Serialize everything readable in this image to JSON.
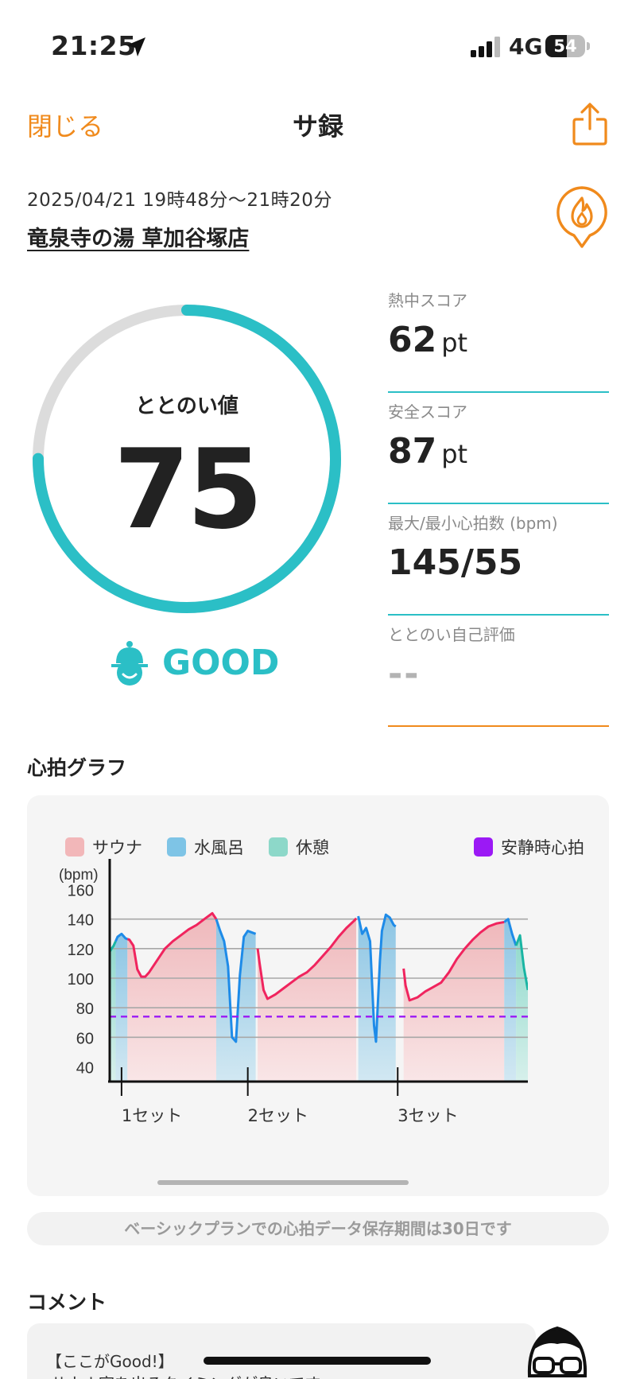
{
  "status_bar": {
    "time": "21:25",
    "network": "4G",
    "battery_level": "54",
    "battery_fraction": 0.54
  },
  "nav": {
    "close_label": "閉じる",
    "title": "サ録"
  },
  "session": {
    "datetime": "2025/04/21 19時48分～21時20分",
    "place": "竜泉寺の湯 草加谷塚店"
  },
  "score": {
    "label": "ととのい値",
    "value": "75",
    "fraction": 0.75,
    "rating": "GOOD"
  },
  "metrics": [
    {
      "label": "熱中スコア",
      "value": "62",
      "unit": "pt"
    },
    {
      "label": "安全スコア",
      "value": "87",
      "unit": "pt"
    },
    {
      "label": "最大/最小心拍数 (bpm)",
      "value": "145/55",
      "unit": ""
    },
    {
      "label": "ととのい自己評価",
      "value": "--",
      "unit": ""
    }
  ],
  "graph_section": {
    "title": "心拍グラフ"
  },
  "legend": {
    "sauna": "サウナ",
    "water": "水風呂",
    "rest": "休憩",
    "resting_hr": "安静時心拍"
  },
  "chart_data": {
    "type": "area",
    "ylabel": "(bpm)",
    "ylim": [
      30,
      170
    ],
    "yticks": [
      40,
      60,
      80,
      100,
      120,
      140,
      160
    ],
    "resting_hr": 74,
    "grid": true,
    "legend_position": "top",
    "set_labels": [
      {
        "label": "1セット",
        "t": 3
      },
      {
        "label": "2セット",
        "t": 35
      },
      {
        "label": "3セット",
        "t": 73
      }
    ],
    "phases": [
      {
        "type": "rest",
        "start": 0,
        "end": 1.5
      },
      {
        "type": "water",
        "start": 1.5,
        "end": 4.5
      },
      {
        "type": "sauna",
        "start": 4.5,
        "end": 27
      },
      {
        "type": "water",
        "start": 27,
        "end": 37
      },
      {
        "type": "sauna",
        "start": 37.5,
        "end": 62.5
      },
      {
        "type": "water",
        "start": 63,
        "end": 72.5
      },
      {
        "type": "sauna",
        "start": 74.5,
        "end": 100
      },
      {
        "type": "water",
        "start": 100,
        "end": 103
      },
      {
        "type": "rest",
        "start": 103,
        "end": 106
      }
    ],
    "series": [
      {
        "points": [
          [
            0,
            118
          ],
          [
            1,
            122
          ],
          [
            2,
            128
          ],
          [
            3,
            130
          ],
          [
            4,
            127
          ],
          [
            5,
            126
          ],
          [
            6,
            122
          ],
          [
            7,
            106
          ],
          [
            8,
            101
          ],
          [
            9,
            101
          ],
          [
            10,
            104
          ],
          [
            12,
            112
          ],
          [
            14,
            120
          ],
          [
            16,
            125
          ],
          [
            18,
            129
          ],
          [
            20,
            133
          ],
          [
            22,
            136
          ],
          [
            24,
            140
          ],
          [
            26,
            144
          ],
          [
            27,
            140
          ],
          [
            28,
            132
          ],
          [
            29,
            125
          ],
          [
            30,
            108
          ],
          [
            31,
            60
          ],
          [
            32,
            57
          ],
          [
            33,
            102
          ],
          [
            34,
            128
          ],
          [
            35,
            132
          ],
          [
            36,
            131
          ],
          [
            37,
            130
          ],
          [
            38,
            110
          ],
          [
            39,
            92
          ],
          [
            40,
            86
          ],
          [
            42,
            89
          ],
          [
            44,
            93
          ],
          [
            46,
            97
          ],
          [
            48,
            101
          ],
          [
            50,
            104
          ],
          [
            52,
            109
          ],
          [
            54,
            115
          ],
          [
            56,
            121
          ],
          [
            58,
            128
          ],
          [
            60,
            134
          ],
          [
            62,
            139
          ],
          [
            63,
            142
          ],
          [
            64,
            130
          ],
          [
            65,
            134
          ],
          [
            66,
            125
          ],
          [
            67,
            68
          ],
          [
            67.5,
            57
          ],
          [
            68.5,
            112
          ],
          [
            69,
            132
          ],
          [
            70,
            143
          ],
          [
            71,
            141
          ],
          [
            72,
            136
          ],
          [
            73,
            134
          ],
          [
            74,
            118
          ],
          [
            75,
            95
          ],
          [
            76,
            85
          ],
          [
            78,
            87
          ],
          [
            80,
            91
          ],
          [
            82,
            94
          ],
          [
            84,
            97
          ],
          [
            86,
            104
          ],
          [
            88,
            113
          ],
          [
            90,
            120
          ],
          [
            92,
            126
          ],
          [
            94,
            131
          ],
          [
            96,
            135
          ],
          [
            98,
            137
          ],
          [
            100,
            138
          ],
          [
            101,
            140
          ],
          [
            102,
            130
          ],
          [
            103,
            122
          ],
          [
            104,
            129
          ],
          [
            105,
            107
          ],
          [
            106,
            92
          ]
        ]
      }
    ]
  },
  "notice": "ベーシックプランでの心拍データ保存期間は30日です",
  "comment": {
    "section_title": "コメント",
    "heading": "【ここがGood!】",
    "body": "サウナ室を出るタイミングが良いです"
  },
  "colors": {
    "accent": "#f08a1c",
    "teal": "#2bbfc6",
    "sauna_fill": "#f2c4c6",
    "water_fill": "#a9d3e8",
    "rest_fill": "#a8ded4",
    "hr_line_sauna": "#f0245e",
    "hr_line_water": "#1e8be8",
    "resting_line": "#9b19f5"
  }
}
